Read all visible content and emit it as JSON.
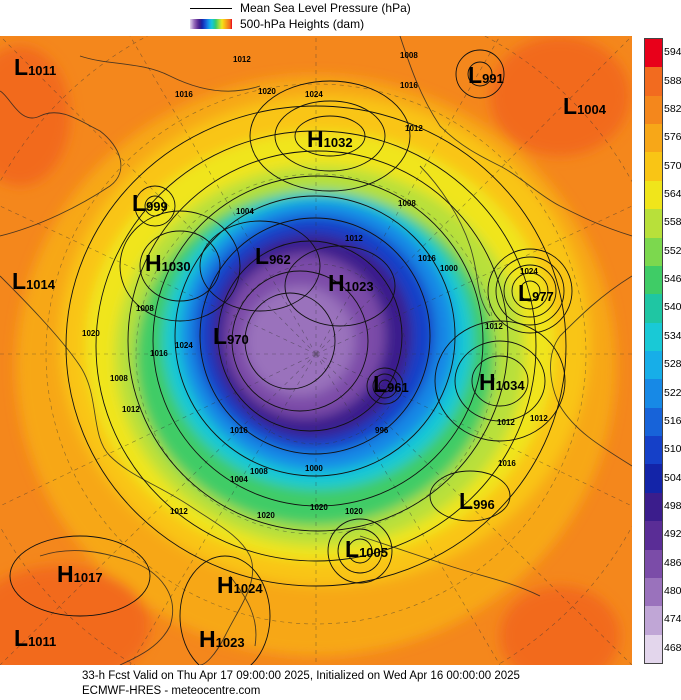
{
  "legend": {
    "mslp_label": "Mean Sea Level Pressure (hPa)",
    "heights_label": "500-hPa Heights (dam)"
  },
  "colorbar": {
    "levels": [
      "594",
      "588",
      "582",
      "576",
      "570",
      "564",
      "558",
      "552",
      "546",
      "540",
      "534",
      "528",
      "522",
      "516",
      "510",
      "504",
      "498",
      "492",
      "486",
      "480",
      "474",
      "468"
    ],
    "colors": [
      "#e8001a",
      "#f26b1f",
      "#f4871c",
      "#f7a718",
      "#f9c515",
      "#f0e51b",
      "#b8e03a",
      "#7cd84e",
      "#3fcc66",
      "#1fc6a3",
      "#19c9d6",
      "#17aee8",
      "#1789e6",
      "#1763d9",
      "#1540c8",
      "#1324a8",
      "#3b1d8c",
      "#5a2d96",
      "#7b4ca8",
      "#9a72bc",
      "#c0a6d6",
      "#e3d6ec"
    ]
  },
  "pressure_centers": [
    {
      "type": "L",
      "value": "1011"
    },
    {
      "type": "L",
      "value": "991"
    },
    {
      "type": "L",
      "value": "1004"
    },
    {
      "type": "H",
      "value": "1032"
    },
    {
      "type": "L",
      "value": "999"
    },
    {
      "type": "H",
      "value": "1030"
    },
    {
      "type": "L",
      "value": "1014"
    },
    {
      "type": "L",
      "value": "962"
    },
    {
      "type": "H",
      "value": "1023"
    },
    {
      "type": "L",
      "value": "977"
    },
    {
      "type": "L",
      "value": "970"
    },
    {
      "type": "L",
      "value": "961"
    },
    {
      "type": "H",
      "value": "1034"
    },
    {
      "type": "L",
      "value": "996"
    },
    {
      "type": "L",
      "value": "1005"
    },
    {
      "type": "H",
      "value": "1017"
    },
    {
      "type": "H",
      "value": "1024"
    },
    {
      "type": "L",
      "value": "1011"
    },
    {
      "type": "H",
      "value": "1023"
    }
  ],
  "isobar_labels": [
    "1012",
    "1016",
    "1020",
    "1024",
    "1008",
    "1016",
    "1012",
    "1004",
    "1008",
    "1012",
    "1016",
    "1000",
    "1008",
    "1016",
    "1020",
    "1024",
    "1012",
    "1016",
    "1012",
    "1012",
    "1012",
    "1016",
    "1000",
    "1020",
    "1020",
    "1008",
    "1004",
    "1020",
    "1024",
    "1012",
    "1008",
    "996"
  ],
  "footer": {
    "line1": "33-h Fcst Valid on Thu Apr 17 09:00:00 2025, Initialized on Wed Apr 16 00:00:00 2025",
    "line2": "ECMWF-HRES  - meteocentre.com"
  }
}
